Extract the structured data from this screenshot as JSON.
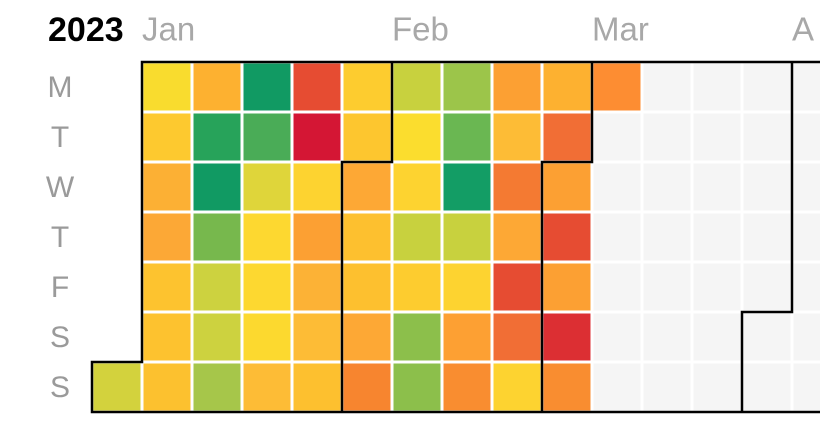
{
  "year": "2023",
  "months": [
    "Jan",
    "Feb",
    "Mar",
    "A"
  ],
  "weekdays": [
    "M",
    "T",
    "W",
    "T",
    "F",
    "S",
    "S"
  ],
  "weeks": [
    [
      null,
      null,
      null,
      null,
      null,
      null,
      "#d3d23d"
    ],
    [
      "#f9dc2e",
      "#fdc92f",
      "#fcb034",
      "#fca836",
      "#fdc32f",
      "#fdc22f",
      "#fcc12f"
    ],
    [
      "#fdb130",
      "#27a35a",
      "#119a63",
      "#77b84d",
      "#cdd23f",
      "#cdd23f",
      "#a6c64a"
    ],
    [
      "#119a63",
      "#4aac57",
      "#dfd53a",
      "#fdd830",
      "#fdd830",
      "#fcd92f",
      "#fdbc36"
    ],
    [
      "#e64c32",
      "#d41634",
      "#fdd330",
      "#fca033",
      "#fcb236",
      "#fdbc36",
      "#fdc02f"
    ],
    [
      "#fdcc2f",
      "#fdc62f",
      "#fda835",
      "#fdc02f",
      "#fdc02f",
      "#fda835",
      "#f7852f"
    ],
    [
      "#c8d13e",
      "#fbdd2e",
      "#fdd330",
      "#c8d13e",
      "#fdcc2f",
      "#8cbf4b",
      "#8cbf4b"
    ],
    [
      "#9cc54a",
      "#6ab752",
      "#139d65",
      "#c8d13e",
      "#fdd330",
      "#fda033",
      "#f98d30"
    ],
    [
      "#fca033",
      "#fdbc36",
      "#f47a32",
      "#fda835",
      "#e64c32",
      "#f16e35",
      "#fdd330"
    ],
    [
      "#fdb130",
      "#f16e35",
      "#fca033",
      "#e64c32",
      "#fca033",
      "#dc2f33",
      "#f98d30"
    ],
    [
      "#fd8d32",
      "#f5f5f5",
      "#f5f5f5",
      "#f5f5f5",
      "#f5f5f5",
      "#f5f5f5",
      "#f5f5f5"
    ],
    [
      "#f5f5f5",
      "#f5f5f5",
      "#f5f5f5",
      "#f5f5f5",
      "#f5f5f5",
      "#f5f5f5",
      "#f5f5f5"
    ],
    [
      "#f5f5f5",
      "#f5f5f5",
      "#f5f5f5",
      "#f5f5f5",
      "#f5f5f5",
      "#f5f5f5",
      "#f5f5f5"
    ],
    [
      "#f5f5f5",
      "#f5f5f5",
      "#f5f5f5",
      "#f5f5f5",
      "#f5f5f5",
      "#f5f5f5",
      "#f5f5f5"
    ],
    [
      "#f5f5f5",
      "#f5f5f5",
      "#f5f5f5",
      "#f5f5f5",
      "#f5f5f5",
      "#f5f5f5",
      "#f5f5f5"
    ]
  ]
}
